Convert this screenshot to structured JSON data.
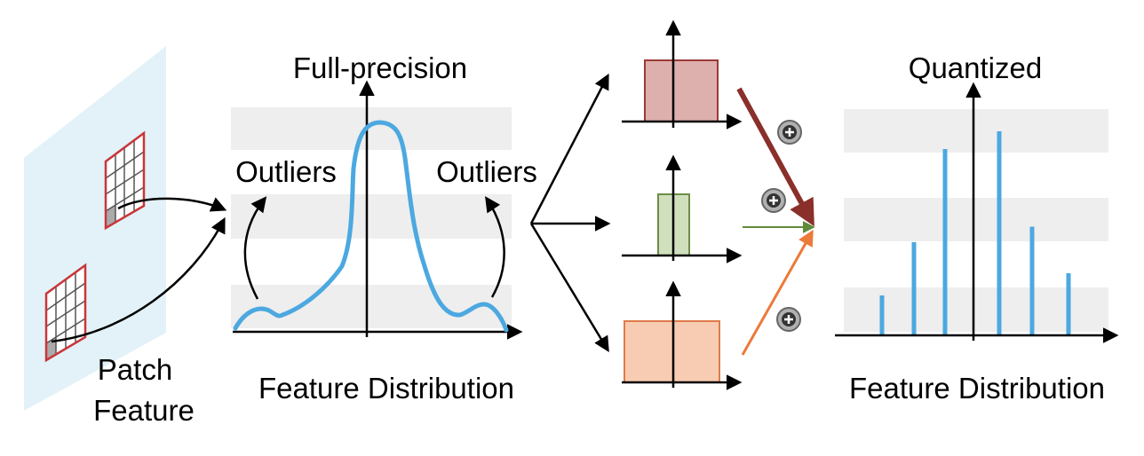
{
  "left_panel": {
    "caption_line1": "Patch",
    "caption_line2": "Feature"
  },
  "full_precision": {
    "title": "Full-precision",
    "outliers_left": "Outliers",
    "outliers_right": "Outliers",
    "caption": "Feature Distribution",
    "curve_color": "#4ca8e0"
  },
  "branches": {
    "colors": {
      "top": {
        "fill": "#deb0ad",
        "stroke": "#9c3a35",
        "arrow": "#8a2f2a"
      },
      "middle": {
        "fill": "#d0e0bd",
        "stroke": "#6e8c48",
        "arrow": "#5f8a3a"
      },
      "bottom": {
        "fill": "#f8ccb2",
        "stroke": "#e07a4a",
        "arrow": "#ec7a3a"
      }
    },
    "plus_icon": "circled-plus-icon"
  },
  "quantized": {
    "title": "Quantized",
    "caption": "Feature Distribution",
    "bar_color": "#4ca8e0",
    "relative_heights": [
      0.18,
      0.42,
      0.84,
      0.92,
      0.49,
      0.28
    ]
  },
  "colors": {
    "band": "#eeeeee",
    "plane": "#e2f2f8",
    "grid_border": "#c8363a"
  }
}
